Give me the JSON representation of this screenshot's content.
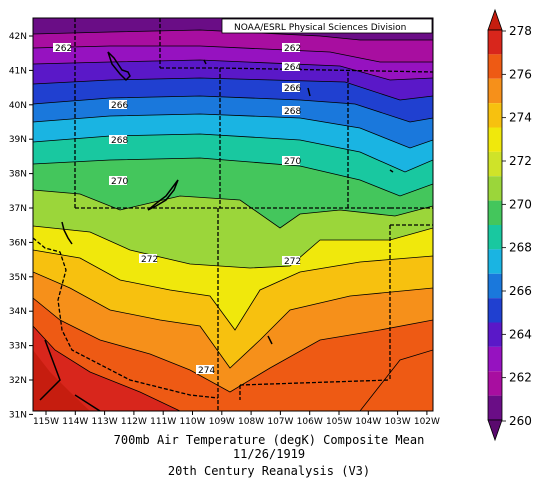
{
  "source": "NOAA/ESRL Physical Sciences Division",
  "caption": {
    "line1": "700mb Air Temperature (degK) Composite Mean",
    "line2": "11/26/1919",
    "line3": "20th Century Reanalysis (V3)"
  },
  "lat_labels": [
    "42N",
    "41N",
    "40N",
    "39N",
    "38N",
    "37N",
    "36N",
    "35N",
    "34N",
    "33N",
    "32N",
    "31N"
  ],
  "lon_labels": [
    "115W",
    "114W",
    "113W",
    "112W",
    "111W",
    "110W",
    "109W",
    "108W",
    "107W",
    "106W",
    "105W",
    "104W",
    "103W",
    "102W"
  ],
  "contour_labels": [
    "262",
    "262",
    "264",
    "266",
    "266",
    "268",
    "268",
    "270",
    "270",
    "272",
    "272",
    "274"
  ],
  "colorbar": {
    "labels": [
      "278",
      "276",
      "274",
      "272",
      "270",
      "268",
      "266",
      "264",
      "262",
      "260"
    ],
    "colors": [
      "#d8261c",
      "#ee5a14",
      "#f6901a",
      "#f7c10f",
      "#f0e80c",
      "#cfe329",
      "#9bd63a",
      "#44c65c",
      "#19c8a0",
      "#1ab4e2",
      "#1a78dc",
      "#2040d0",
      "#5a18c8",
      "#9612c0",
      "#a80ea0",
      "#6a0d86"
    ],
    "top_arrow": "#c61d0f",
    "bottom_arrow": "#5a0a6e"
  }
}
